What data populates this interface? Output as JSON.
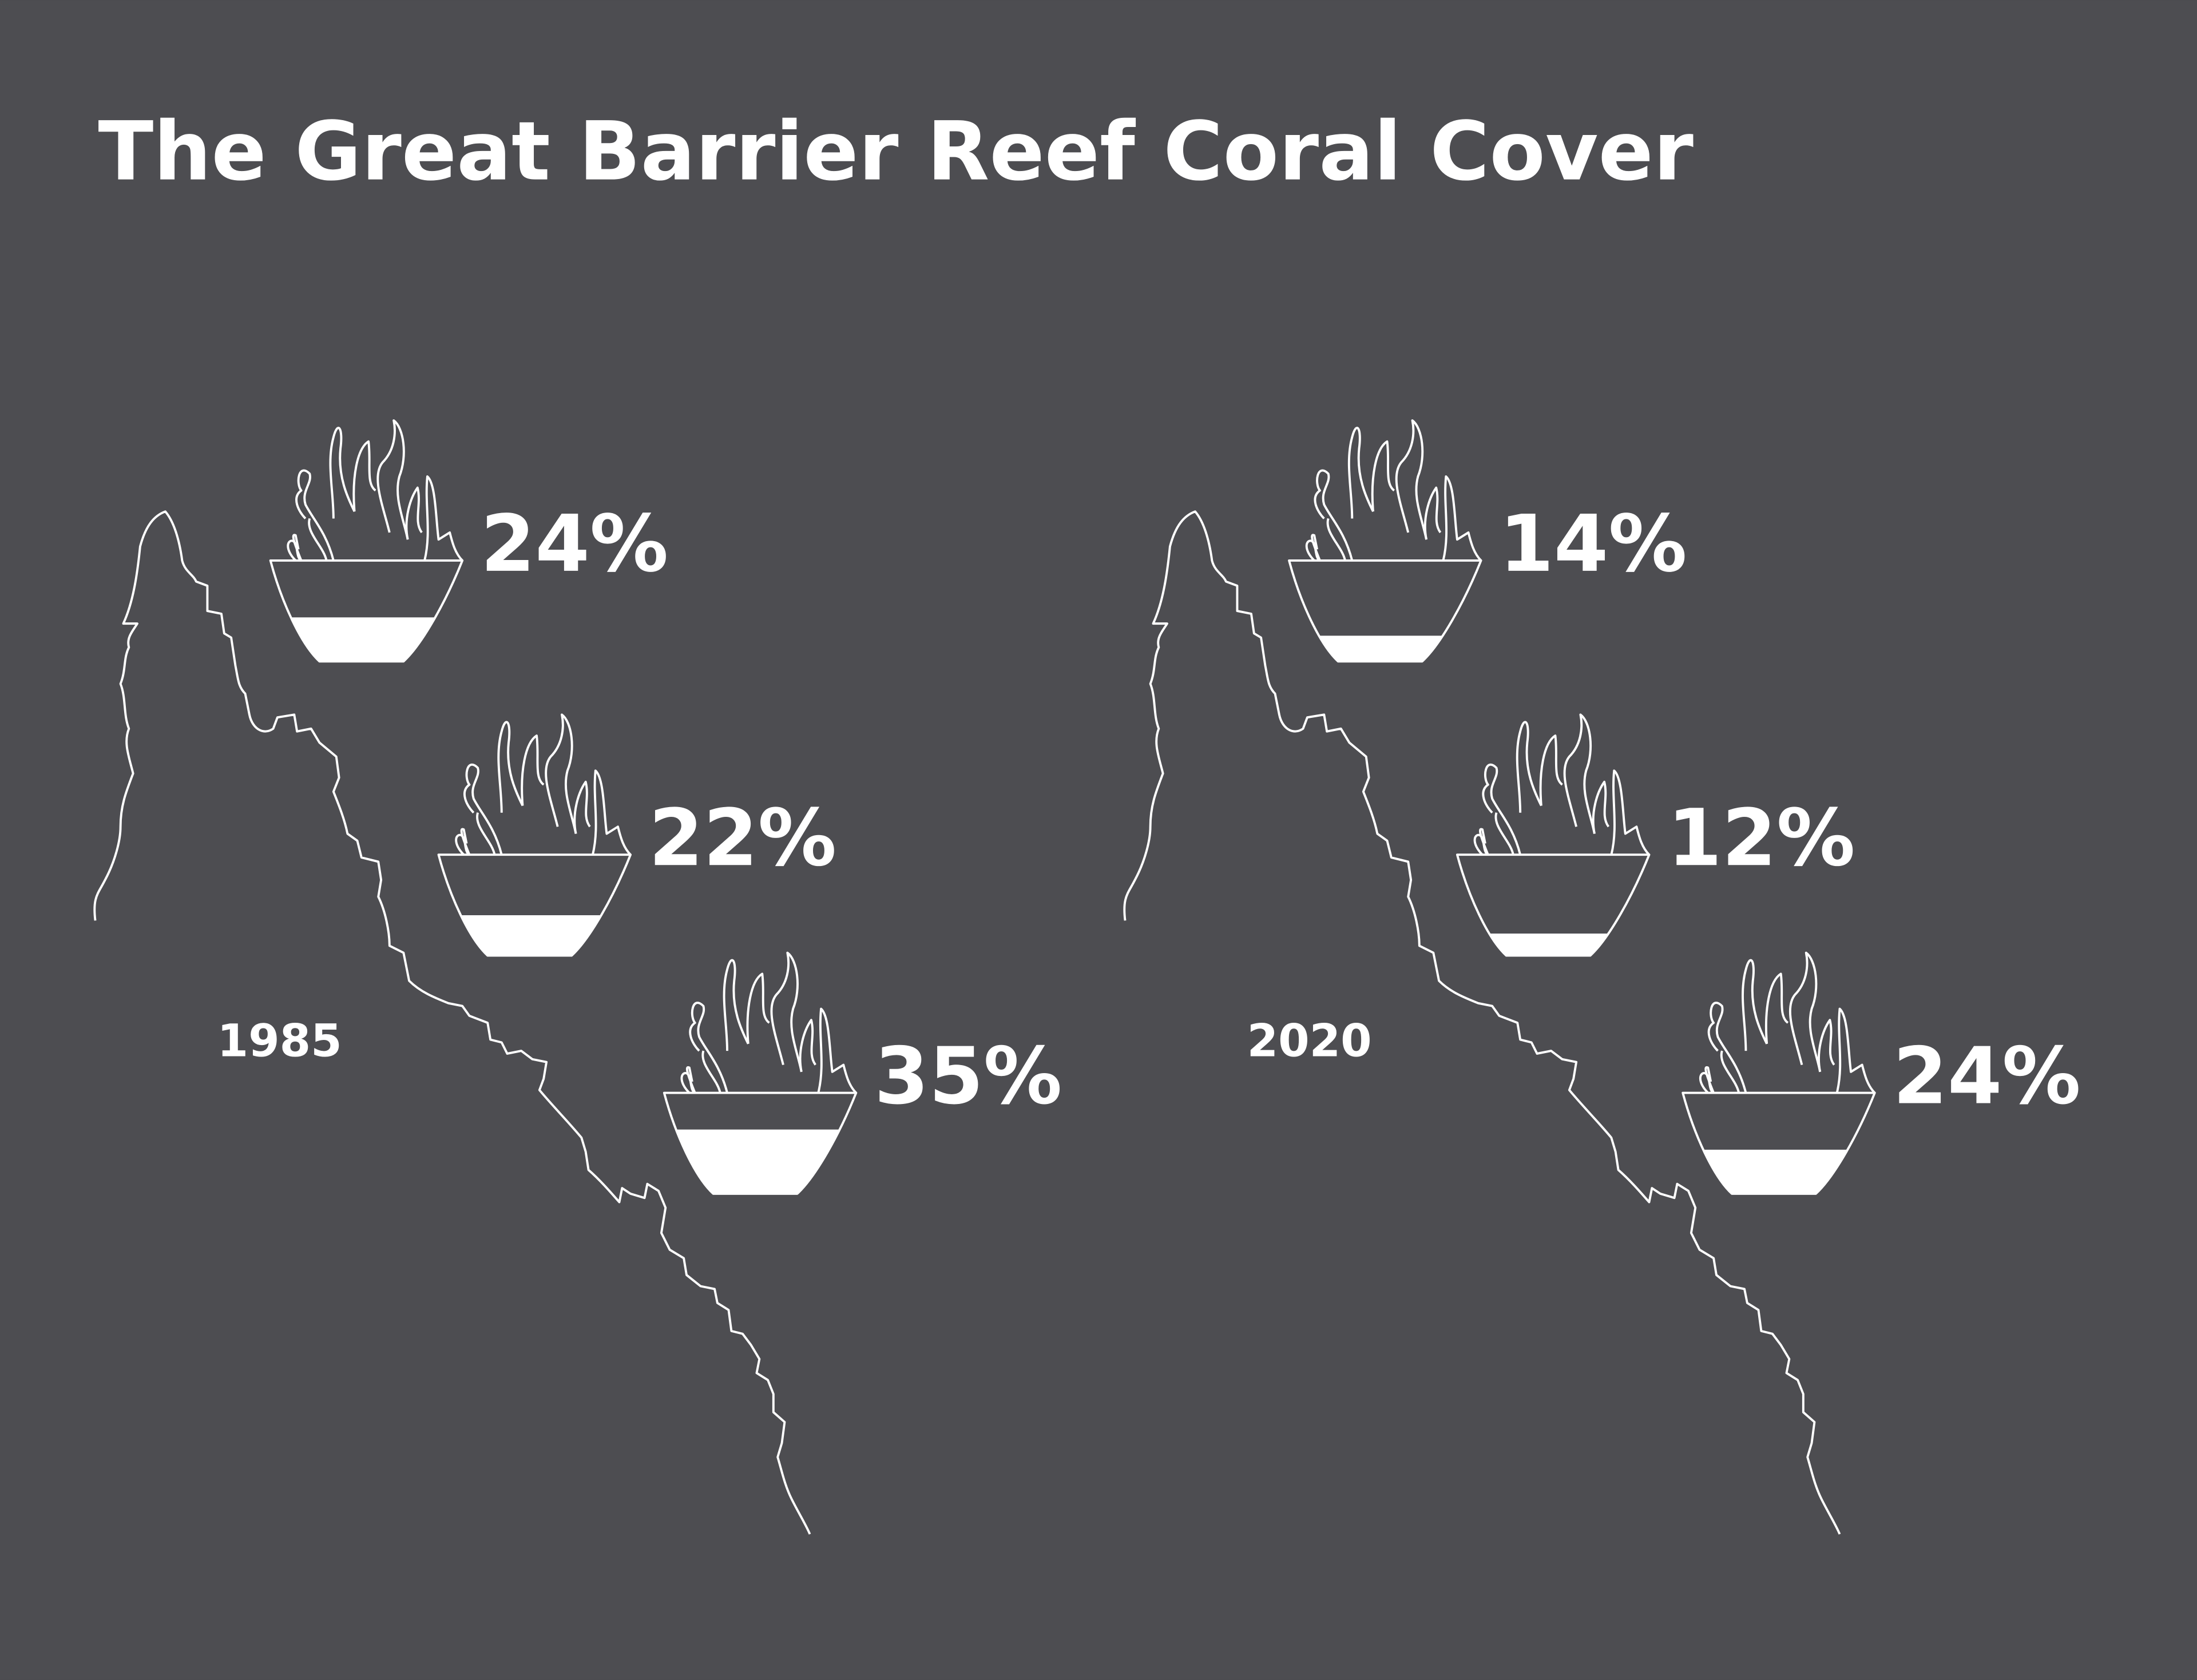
{
  "title": "The Great Barrier Reef Coral Cover",
  "chart_data": [
    {
      "type": "pictogram",
      "title": "1985",
      "values": [
        24,
        22,
        35
      ],
      "value_labels": [
        "24%",
        "22%",
        "35%"
      ],
      "color": "#ffffff"
    },
    {
      "type": "pictogram",
      "title": "2020",
      "values": [
        14,
        12,
        24
      ],
      "value_labels": [
        "14%",
        "12%",
        "24%"
      ],
      "color": "#ffffff"
    }
  ]
}
